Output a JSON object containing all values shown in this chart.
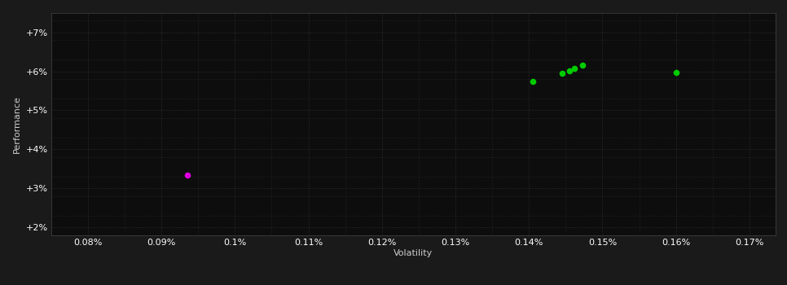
{
  "background_color": "#1a1a1a",
  "plot_bg_color": "#0d0d0d",
  "grid_color": "#333333",
  "xlabel": "Volatility",
  "ylabel": "Performance",
  "xlim": [
    0.0755,
    0.1735
  ],
  "ylim": [
    0.018,
    0.075
  ],
  "xticks": [
    0.08,
    0.09,
    0.1,
    0.11,
    0.12,
    0.13,
    0.14,
    0.15,
    0.16,
    0.17
  ],
  "yticks": [
    0.02,
    0.03,
    0.04,
    0.05,
    0.06,
    0.07
  ],
  "ytick_labels": [
    "+2%",
    "+3%",
    "+4%",
    "+5%",
    "+6%",
    "+7%"
  ],
  "xtick_labels": [
    "0.08%",
    "0.09%",
    "0.1%",
    "0.11%",
    "0.12%",
    "0.13%",
    "0.14%",
    "0.15%",
    "0.16%",
    "0.17%"
  ],
  "green_points": [
    [
      0.1405,
      0.0575
    ],
    [
      0.1445,
      0.0595
    ],
    [
      0.1455,
      0.0602
    ],
    [
      0.1462,
      0.0608
    ],
    [
      0.1473,
      0.0616
    ],
    [
      0.16,
      0.0597
    ]
  ],
  "magenta_point": [
    0.0935,
    0.0335
  ],
  "dot_size": 30,
  "green_color": "#00cc00",
  "magenta_color": "#dd00dd",
  "tick_color": "#ffffff",
  "label_color": "#cccccc",
  "label_fontsize": 8,
  "tick_fontsize": 8,
  "spine_color": "#444444"
}
